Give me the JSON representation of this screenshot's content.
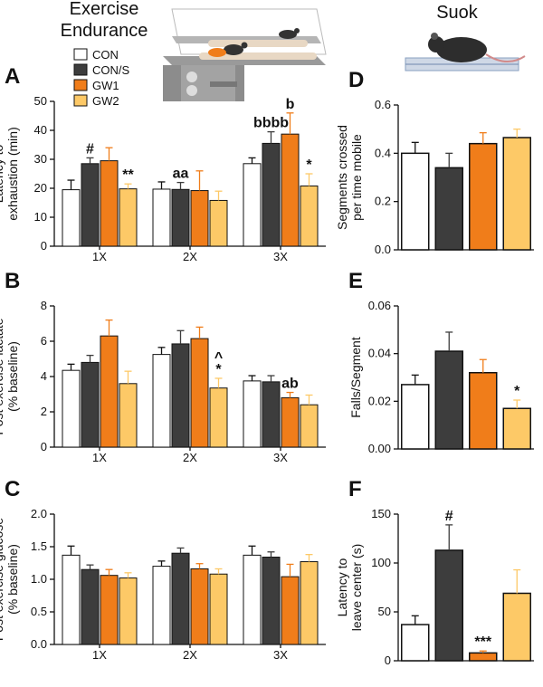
{
  "header": {
    "left": [
      "Exercise",
      "Endurance"
    ],
    "right": "Suok"
  },
  "chart_data": [
    {
      "type": "grouped-bar",
      "panel": "A",
      "ylabel": [
        "Latency to",
        "exhaustion (min)"
      ],
      "categories": [
        "1X",
        "2X",
        "3X"
      ],
      "ylim": [
        0,
        50
      ],
      "yticks": [
        0,
        10,
        20,
        30,
        40,
        50
      ],
      "series": [
        {
          "name": "CON",
          "color": "#ffffff",
          "values": [
            19.5,
            19.7,
            28.5
          ],
          "errors": [
            3.3,
            2.5,
            2.0
          ],
          "annotations": [
            null,
            null,
            null
          ]
        },
        {
          "name": "CON/S",
          "color": "#3d3d3d",
          "values": [
            28.5,
            19.6,
            35.5
          ],
          "errors": [
            2.0,
            2.4,
            4.0
          ],
          "annotations": [
            "#",
            "aa",
            "bbbb"
          ]
        },
        {
          "name": "GW1",
          "color": "#f07d1a",
          "values": [
            29.5,
            19.2,
            38.7
          ],
          "errors": [
            4.5,
            6.8,
            7.3
          ],
          "annotations": [
            null,
            null,
            "b"
          ]
        },
        {
          "name": "GW2",
          "color": "#fdc967",
          "values": [
            19.8,
            15.8,
            20.8
          ],
          "errors": [
            1.7,
            3.2,
            4.2
          ],
          "annotations": [
            "**",
            null,
            "*"
          ]
        }
      ]
    },
    {
      "type": "grouped-bar",
      "panel": "B",
      "ylabel": [
        "Post exercise lactate",
        "(% baseline)"
      ],
      "categories": [
        "1X",
        "2X",
        "3X"
      ],
      "ylim": [
        0,
        8
      ],
      "yticks": [
        0,
        2,
        4,
        6,
        8
      ],
      "series": [
        {
          "name": "CON",
          "color": "#ffffff",
          "values": [
            4.35,
            5.25,
            3.75
          ],
          "errors": [
            0.35,
            0.4,
            0.3
          ],
          "annotations": [
            null,
            null,
            null
          ]
        },
        {
          "name": "CON/S",
          "color": "#3d3d3d",
          "values": [
            4.8,
            5.85,
            3.7
          ],
          "errors": [
            0.4,
            0.75,
            0.35
          ],
          "annotations": [
            null,
            null,
            null
          ]
        },
        {
          "name": "GW1",
          "color": "#f07d1a",
          "values": [
            6.3,
            6.15,
            2.8
          ],
          "errors": [
            0.9,
            0.65,
            0.3
          ],
          "annotations": [
            null,
            null,
            "ab"
          ]
        },
        {
          "name": "GW2",
          "color": "#fdc967",
          "values": [
            3.6,
            3.35,
            2.4
          ],
          "errors": [
            0.7,
            0.55,
            0.55
          ],
          "annotations": [
            null,
            [
              "^",
              "*"
            ],
            null
          ]
        }
      ]
    },
    {
      "type": "grouped-bar",
      "panel": "C",
      "ylabel": [
        "Post exercise glucose",
        "(% baseline)"
      ],
      "categories": [
        "1X",
        "2X",
        "3X"
      ],
      "ylim": [
        0,
        2
      ],
      "yticks": [
        {
          "value": 0,
          "label": "0.0"
        },
        {
          "value": 0.5,
          "label": "0.5"
        },
        {
          "value": 1,
          "label": "1.0"
        },
        {
          "value": 1.5,
          "label": "1.5"
        },
        {
          "value": 2,
          "label": "2.0"
        }
      ],
      "series": [
        {
          "name": "CON",
          "color": "#ffffff",
          "values": [
            1.37,
            1.2,
            1.37
          ],
          "errors": [
            0.14,
            0.08,
            0.14
          ],
          "annotations": [
            null,
            null,
            null
          ]
        },
        {
          "name": "CON/S",
          "color": "#3d3d3d",
          "values": [
            1.15,
            1.4,
            1.34
          ],
          "errors": [
            0.07,
            0.08,
            0.08
          ],
          "annotations": [
            null,
            null,
            null
          ]
        },
        {
          "name": "GW1",
          "color": "#f07d1a",
          "values": [
            1.06,
            1.16,
            1.04
          ],
          "errors": [
            0.09,
            0.08,
            0.19
          ],
          "annotations": [
            null,
            null,
            null
          ]
        },
        {
          "name": "GW2",
          "color": "#fdc967",
          "values": [
            1.02,
            1.08,
            1.27
          ],
          "errors": [
            0.08,
            0.08,
            0.11
          ],
          "annotations": [
            null,
            null,
            null
          ]
        }
      ]
    },
    {
      "type": "bar",
      "panel": "D",
      "ylabel": [
        "Segments crossed",
        "per time mobile"
      ],
      "ylim": [
        0,
        0.6
      ],
      "yticks": [
        {
          "value": 0,
          "label": "0.0"
        },
        {
          "value": 0.2,
          "label": "0.2"
        },
        {
          "value": 0.4,
          "label": "0.4"
        },
        {
          "value": 0.6,
          "label": "0.6"
        }
      ],
      "values": [
        0.4,
        0.34,
        0.44,
        0.465
      ],
      "errors": [
        0.045,
        0.06,
        0.045,
        0.035
      ],
      "colors": [
        "#ffffff",
        "#3d3d3d",
        "#f07d1a",
        "#fdc967"
      ],
      "annotations": [
        null,
        null,
        null,
        null
      ]
    },
    {
      "type": "bar",
      "panel": "E",
      "ylabel": [
        "Falls/Segment"
      ],
      "ylim": [
        0,
        0.06
      ],
      "yticks": [
        {
          "value": 0,
          "label": "0.00"
        },
        {
          "value": 0.02,
          "label": "0.02"
        },
        {
          "value": 0.04,
          "label": "0.04"
        },
        {
          "value": 0.06,
          "label": "0.06"
        }
      ],
      "values": [
        0.027,
        0.041,
        0.032,
        0.017
      ],
      "errors": [
        0.004,
        0.008,
        0.0055,
        0.0035
      ],
      "colors": [
        "#ffffff",
        "#3d3d3d",
        "#f07d1a",
        "#fdc967"
      ],
      "annotations": [
        null,
        null,
        null,
        "*"
      ]
    },
    {
      "type": "bar",
      "panel": "F",
      "ylabel": [
        "Latency to",
        "leave center (s)"
      ],
      "ylim": [
        0,
        150
      ],
      "yticks": [
        0,
        50,
        100,
        150
      ],
      "values": [
        37,
        113,
        8,
        69
      ],
      "errors": [
        9,
        26,
        2,
        24
      ],
      "colors": [
        "#ffffff",
        "#3d3d3d",
        "#f07d1a",
        "#fdc967"
      ],
      "annotations": [
        null,
        "#",
        "***",
        null
      ]
    }
  ]
}
